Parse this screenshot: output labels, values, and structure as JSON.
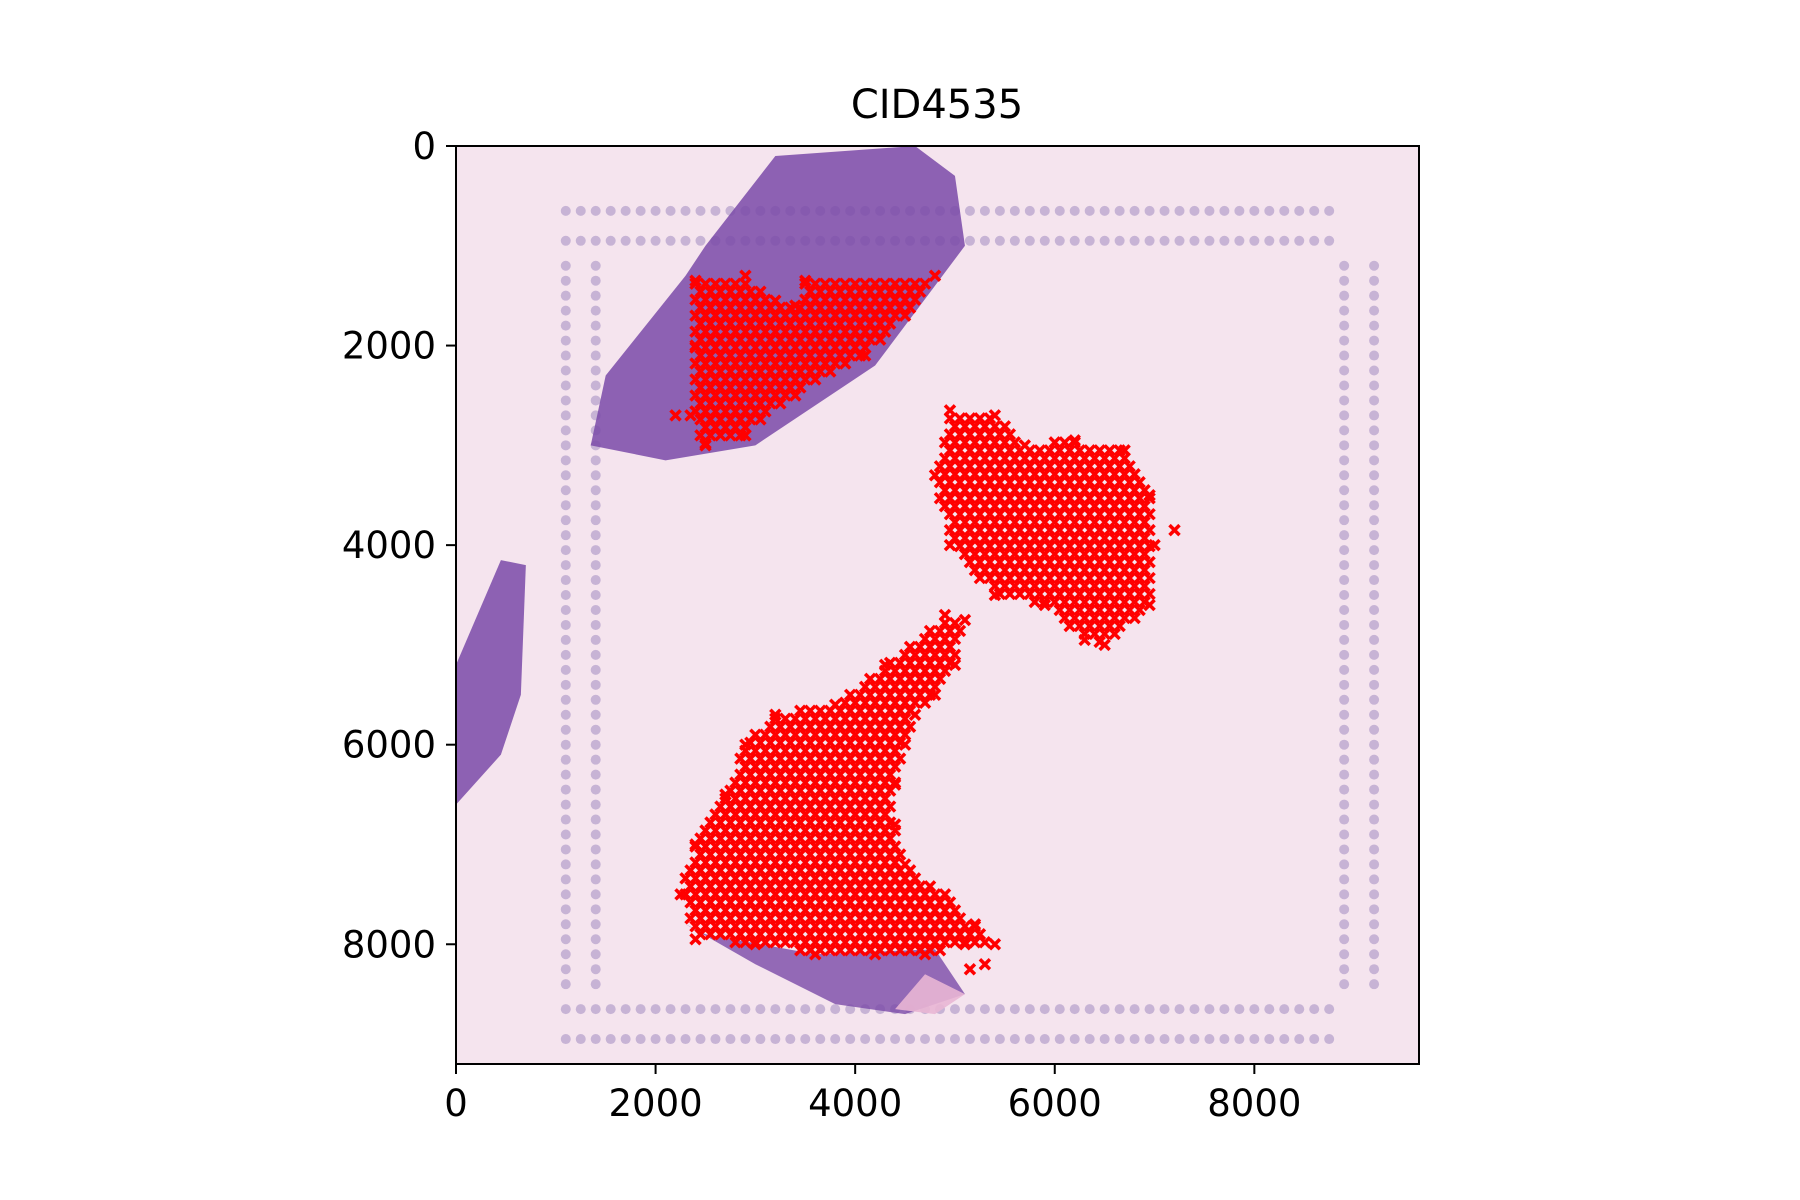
{
  "chart_data": {
    "type": "scatter",
    "title": "CID4535",
    "xlabel": "",
    "ylabel": "",
    "xlim": [
      0,
      9650
    ],
    "ylim": [
      9200,
      0
    ],
    "y_inverted": true,
    "xticks": [
      0,
      2000,
      4000,
      6000,
      8000
    ],
    "yticks": [
      0,
      2000,
      4000,
      6000,
      8000
    ],
    "grid": false,
    "legend": "none",
    "background": "H&E tissue section image with capture-spot grid",
    "marker": "x",
    "marker_color": "#ff0000",
    "series": [
      {
        "region": "upper-left",
        "outline": [
          [
            2400,
            1350
          ],
          [
            2900,
            1300
          ],
          [
            3200,
            1550
          ],
          [
            3400,
            1600
          ],
          [
            3500,
            1350
          ],
          [
            4800,
            1300
          ],
          [
            4500,
            1700
          ],
          [
            4100,
            2100
          ],
          [
            3400,
            2500
          ],
          [
            2900,
            2900
          ],
          [
            2500,
            3000
          ],
          [
            2350,
            2700
          ],
          [
            2400,
            2000
          ]
        ],
        "extra_points": [
          [
            2200,
            2700
          ]
        ]
      },
      {
        "region": "center-right",
        "outline": [
          [
            4950,
            2650
          ],
          [
            5400,
            2700
          ],
          [
            5700,
            3000
          ],
          [
            6200,
            2950
          ],
          [
            6700,
            3050
          ],
          [
            6950,
            3500
          ],
          [
            7000,
            4000
          ],
          [
            6950,
            4600
          ],
          [
            6500,
            5000
          ],
          [
            6300,
            4950
          ],
          [
            5900,
            4600
          ],
          [
            5400,
            4500
          ],
          [
            4950,
            4000
          ],
          [
            4800,
            3300
          ]
        ],
        "extra_points": [
          [
            7200,
            3850
          ]
        ]
      },
      {
        "region": "lower-center",
        "outline": [
          [
            4900,
            4700
          ],
          [
            5100,
            4750
          ],
          [
            5000,
            5200
          ],
          [
            4800,
            5500
          ],
          [
            4600,
            5700
          ],
          [
            4500,
            6000
          ],
          [
            4400,
            6400
          ],
          [
            4400,
            6800
          ],
          [
            4500,
            7200
          ],
          [
            4900,
            7500
          ],
          [
            5200,
            7800
          ],
          [
            5400,
            8000
          ],
          [
            5100,
            8000
          ],
          [
            4700,
            8100
          ],
          [
            4200,
            8100
          ],
          [
            3600,
            8100
          ],
          [
            3000,
            8000
          ],
          [
            2400,
            7950
          ],
          [
            2250,
            7500
          ],
          [
            2400,
            7000
          ],
          [
            2700,
            6500
          ],
          [
            2900,
            6000
          ],
          [
            3200,
            5700
          ],
          [
            3800,
            5600
          ],
          [
            4300,
            5200
          ]
        ],
        "extra_points": [
          [
            5300,
            8200
          ],
          [
            5150,
            8250
          ]
        ]
      }
    ]
  },
  "colors": {
    "tissue_purple": "#7a4aa8",
    "tissue_pink": "#e9b6d4",
    "slide_background": "#f5e4ee",
    "spot_grid": "#b7a3cc",
    "marker": "#ff0000"
  }
}
